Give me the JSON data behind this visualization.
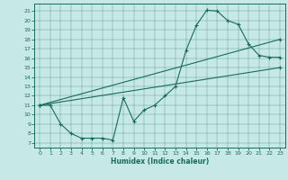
{
  "xlabel": "Humidex (Indice chaleur)",
  "bg_color": "#c6e8e6",
  "line_color": "#1a6b5a",
  "xlim": [
    -0.5,
    23.5
  ],
  "ylim": [
    6.5,
    21.8
  ],
  "xticks": [
    0,
    1,
    2,
    3,
    4,
    5,
    6,
    7,
    8,
    9,
    10,
    11,
    12,
    13,
    14,
    15,
    16,
    17,
    18,
    19,
    20,
    21,
    22,
    23
  ],
  "yticks": [
    7,
    8,
    9,
    10,
    11,
    12,
    13,
    14,
    15,
    16,
    17,
    18,
    19,
    20,
    21
  ],
  "line1_x": [
    0,
    1,
    2,
    3,
    4,
    5,
    6,
    7,
    8,
    9,
    10,
    11,
    12,
    13,
    14,
    15,
    16,
    17,
    18,
    19,
    20,
    21,
    22,
    23
  ],
  "line1_y": [
    11,
    11,
    9,
    8,
    7.5,
    7.5,
    7.5,
    7.3,
    11.8,
    9.3,
    10.5,
    11,
    12,
    13,
    16.8,
    19.5,
    21.1,
    21.0,
    20.0,
    19.6,
    17.5,
    16.3,
    16.1,
    16.1
  ],
  "line2_x": [
    0,
    23
  ],
  "line2_y": [
    11,
    15
  ],
  "line3_x": [
    0,
    23
  ],
  "line3_y": [
    11,
    18
  ]
}
